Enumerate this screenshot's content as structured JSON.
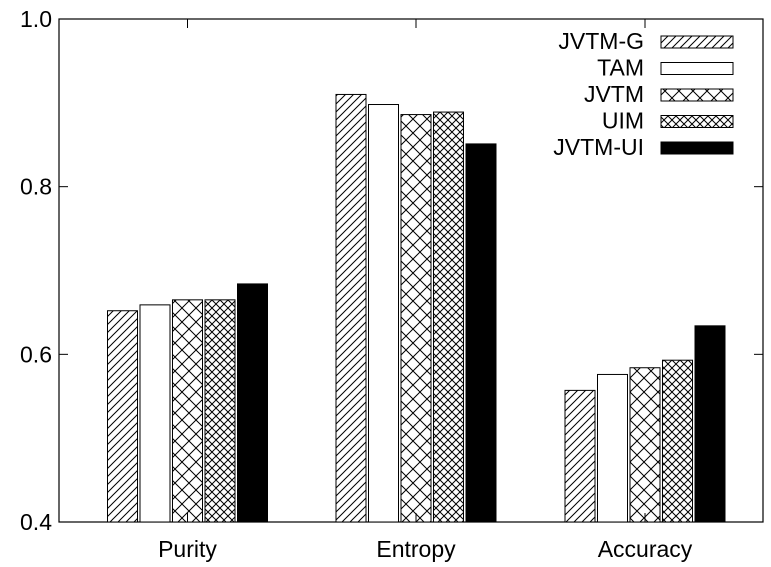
{
  "chart_data": {
    "type": "bar",
    "title": "",
    "xlabel": "",
    "ylabel": "",
    "categories": [
      "Purity",
      "Entropy",
      "Accuracy"
    ],
    "ylim": [
      0.4,
      1.0
    ],
    "yticks": [
      0.4,
      0.6,
      0.8,
      1.0
    ],
    "ytick_labels": [
      "0.4",
      "0.6",
      "0.8",
      "1.0"
    ],
    "grid": false,
    "legend_position": "top-right",
    "series": [
      {
        "name": "JVTM-G",
        "pattern": "diagonal-hatch",
        "values": [
          0.652,
          0.91,
          0.557
        ]
      },
      {
        "name": "TAM",
        "pattern": "empty",
        "values": [
          0.659,
          0.898,
          0.576
        ]
      },
      {
        "name": "JVTM",
        "pattern": "cross-hatch",
        "values": [
          0.665,
          0.886,
          0.584
        ]
      },
      {
        "name": "UIM",
        "pattern": "dense-cross-hatch",
        "values": [
          0.665,
          0.889,
          0.593
        ]
      },
      {
        "name": "JVTM-UI",
        "pattern": "solid",
        "values": [
          0.684,
          0.851,
          0.634
        ]
      }
    ]
  }
}
